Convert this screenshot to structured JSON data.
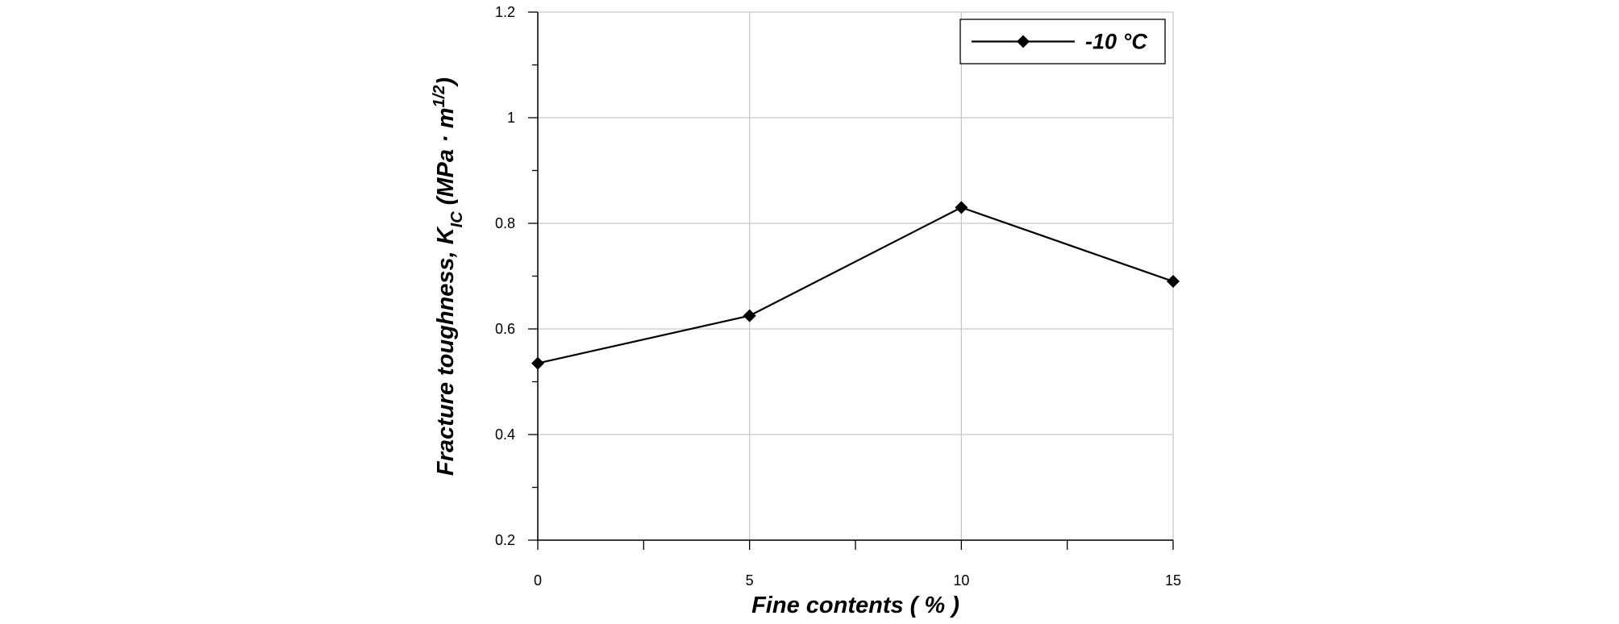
{
  "chart_data": {
    "type": "line",
    "xlabel": "Fine contents ( % )",
    "ylabel": [
      "Fracture toughness, K",
      "IC",
      " (MPa · m",
      "1/2",
      ")"
    ],
    "x": [
      0,
      5,
      10,
      15
    ],
    "series": [
      {
        "name": "-10 °C",
        "color": "#000000",
        "values": [
          0.535,
          0.625,
          0.83,
          0.69
        ]
      }
    ],
    "xlim": [
      0,
      15
    ],
    "xticks": [
      0,
      5,
      10,
      15
    ],
    "ylim": [
      0.2,
      1.2
    ],
    "yticks": [
      0.2,
      0.4,
      0.6,
      0.8,
      1,
      1.2
    ],
    "grid": true,
    "legend": "upper right",
    "marker": "diamond"
  }
}
